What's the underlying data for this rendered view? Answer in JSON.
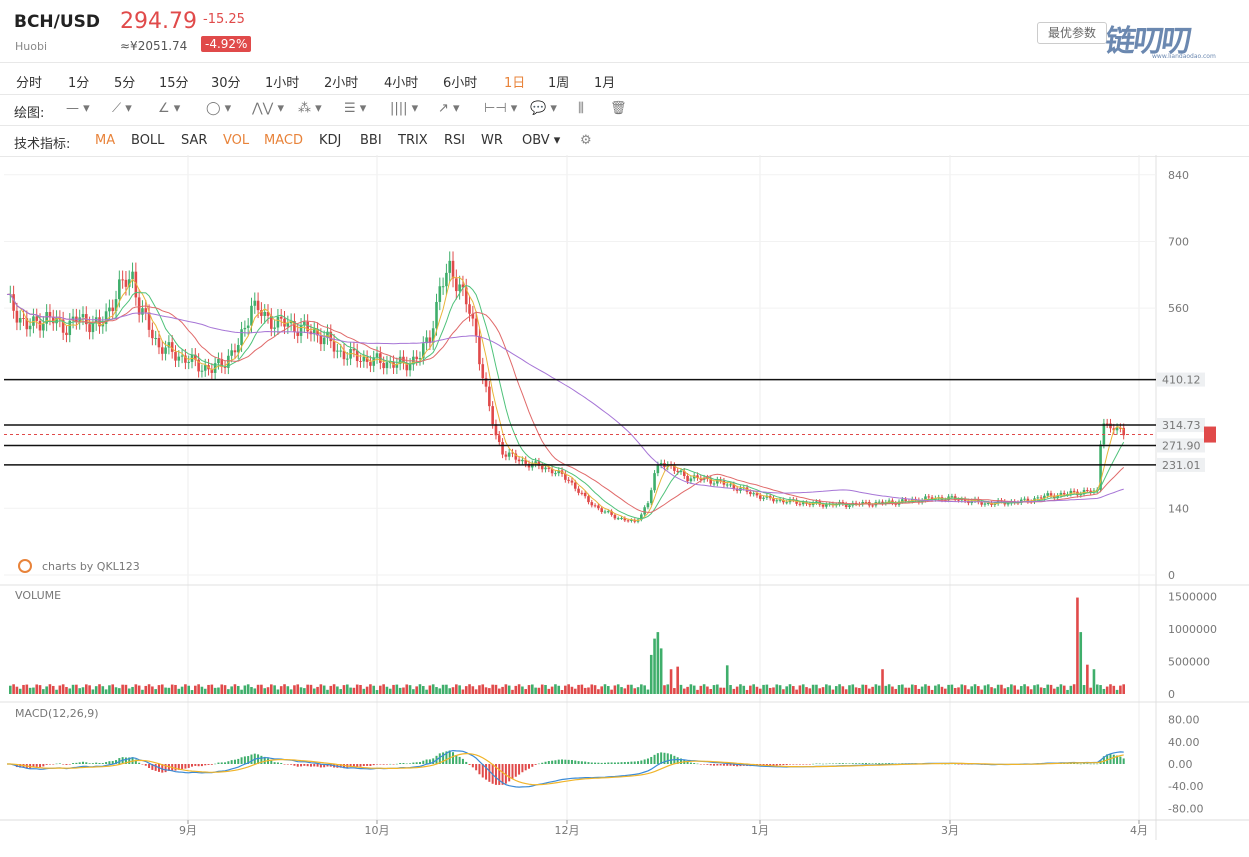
{
  "header": {
    "pair": "BCH/USD",
    "exchange": "Huobi",
    "price": "294.79",
    "change": "-15.25",
    "cny": "≈¥2051.74",
    "pct": "-4.92%",
    "settings_label": "最优参数",
    "logo_text": "链叨叨",
    "logo_url_text": "www.liandaodao.com"
  },
  "periods": [
    "分时",
    "1分",
    "5分",
    "15分",
    "30分",
    "1小时",
    "2小时",
    "4小时",
    "6小时",
    "1日",
    "1周",
    "1月"
  ],
  "active_period": "1日",
  "draw_label": "绘图:",
  "draw_tools": [
    {
      "name": "line-tool-icon",
      "glyph": "— ▾"
    },
    {
      "name": "segment-tool-icon",
      "glyph": "⟋ ▾"
    },
    {
      "name": "angle-tool-icon",
      "glyph": "∠ ▾"
    },
    {
      "name": "circle-tool-icon",
      "glyph": "◯ ▾"
    },
    {
      "name": "wave-tool-icon",
      "glyph": "⋀⋁ ▾"
    },
    {
      "name": "pattern-tool-icon",
      "glyph": "⁂ ▾"
    },
    {
      "name": "fib-tool-icon",
      "glyph": "☰ ▾"
    },
    {
      "name": "channel-tool-icon",
      "glyph": "|||| ▾"
    },
    {
      "name": "arrow-tool-icon",
      "glyph": "↗ ▾"
    },
    {
      "name": "measure-tool-icon",
      "glyph": "⊢⊣ ▾"
    },
    {
      "name": "comment-tool-icon",
      "glyph": "💬 ▾"
    },
    {
      "name": "bars-tool-icon",
      "glyph": "⫼"
    },
    {
      "name": "trash-icon",
      "glyph": "🗑"
    }
  ],
  "indicator_label": "技术指标:",
  "indicators": [
    {
      "label": "MA",
      "on": true
    },
    {
      "label": "BOLL",
      "on": false
    },
    {
      "label": "SAR",
      "on": false
    },
    {
      "label": "VOL",
      "on": true
    },
    {
      "label": "MACD",
      "on": true
    },
    {
      "label": "KDJ",
      "on": false
    },
    {
      "label": "BBI",
      "on": false
    },
    {
      "label": "TRIX",
      "on": false
    },
    {
      "label": "RSI",
      "on": false
    },
    {
      "label": "WR",
      "on": false
    },
    {
      "label": "OBV ▾",
      "on": false
    }
  ],
  "colors": {
    "up": "#3fae6b",
    "down": "#e04a4a",
    "ma5": "#e8b53a",
    "ma10": "#4fc27a",
    "ma20": "#e06a6a",
    "ma60": "#a675d6",
    "diff": "#3a8ad6",
    "dea": "#f0b429",
    "accent": "#e8833a"
  },
  "chart_data": {
    "type": "candlestick",
    "watermark": "charts by QKL123",
    "price_axis_ticks": [
      840,
      700,
      560,
      140,
      0
    ],
    "price_ylim": [
      0,
      850
    ],
    "hlines": [
      {
        "value": 410.12,
        "label": "410.12"
      },
      {
        "value": 314.73,
        "label": "314.73"
      },
      {
        "value": 271.9,
        "label": "271.90"
      },
      {
        "value": 231.01,
        "label": "231.01"
      }
    ],
    "last_price": 294.79,
    "x_ticks": [
      "9月",
      "10月",
      "12月",
      "1月",
      "3月",
      "4月"
    ],
    "price_path_keypoints": [
      [
        0,
        580
      ],
      [
        6,
        520
      ],
      [
        12,
        540
      ],
      [
        18,
        520
      ],
      [
        22,
        540
      ],
      [
        28,
        520
      ],
      [
        34,
        600
      ],
      [
        38,
        630
      ],
      [
        40,
        560
      ],
      [
        46,
        480
      ],
      [
        52,
        460
      ],
      [
        58,
        440
      ],
      [
        62,
        430
      ],
      [
        66,
        450
      ],
      [
        70,
        480
      ],
      [
        72,
        520
      ],
      [
        74,
        570
      ],
      [
        78,
        540
      ],
      [
        82,
        530
      ],
      [
        88,
        520
      ],
      [
        92,
        510
      ],
      [
        96,
        500
      ],
      [
        100,
        470
      ],
      [
        104,
        460
      ],
      [
        110,
        450
      ],
      [
        116,
        445
      ],
      [
        120,
        440
      ],
      [
        125,
        460
      ],
      [
        128,
        500
      ],
      [
        131,
        600
      ],
      [
        134,
        640
      ],
      [
        137,
        610
      ],
      [
        140,
        550
      ],
      [
        142,
        500
      ],
      [
        144,
        420
      ],
      [
        146,
        350
      ],
      [
        148,
        290
      ],
      [
        150,
        260
      ],
      [
        155,
        240
      ],
      [
        160,
        230
      ],
      [
        165,
        220
      ],
      [
        170,
        200
      ],
      [
        175,
        160
      ],
      [
        180,
        135
      ],
      [
        185,
        120
      ],
      [
        190,
        110
      ],
      [
        194,
        150
      ],
      [
        196,
        210
      ],
      [
        198,
        240
      ],
      [
        202,
        220
      ],
      [
        206,
        205
      ],
      [
        212,
        200
      ],
      [
        218,
        190
      ],
      [
        224,
        175
      ],
      [
        230,
        160
      ],
      [
        236,
        155
      ],
      [
        242,
        150
      ],
      [
        248,
        148
      ],
      [
        254,
        148
      ],
      [
        260,
        150
      ],
      [
        266,
        152
      ],
      [
        272,
        155
      ],
      [
        278,
        160
      ],
      [
        284,
        162
      ],
      [
        290,
        157
      ],
      [
        296,
        150
      ],
      [
        302,
        152
      ],
      [
        308,
        155
      ],
      [
        314,
        165
      ],
      [
        320,
        170
      ],
      [
        326,
        175
      ],
      [
        330,
        175
      ],
      [
        331,
        280
      ],
      [
        332,
        330
      ],
      [
        334,
        300
      ],
      [
        336,
        310
      ],
      [
        338,
        295
      ]
    ],
    "volume": {
      "label": "VOLUME",
      "ticks": [
        1500000,
        1000000,
        500000,
        0
      ],
      "spikes": [
        [
          195,
          600000
        ],
        [
          196,
          850000
        ],
        [
          197,
          950000
        ],
        [
          198,
          700000
        ],
        [
          201,
          380000
        ],
        [
          203,
          420000
        ],
        [
          218,
          440000
        ],
        [
          265,
          380000
        ],
        [
          324,
          1480000
        ],
        [
          325,
          950000
        ],
        [
          327,
          450000
        ],
        [
          329,
          380000
        ]
      ]
    },
    "macd": {
      "label": "MACD(12,26,9)",
      "ticks": [
        "80.00",
        "40.00",
        "0.00",
        "-40.00",
        "-80.00"
      ],
      "ylim": [
        -90,
        90
      ]
    }
  }
}
